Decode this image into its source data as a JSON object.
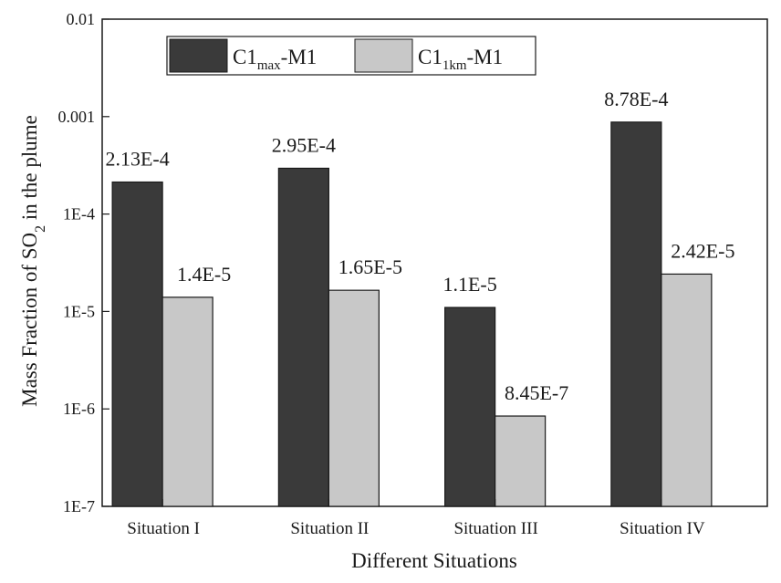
{
  "chart_data": {
    "type": "bar",
    "scale": "log",
    "title": "",
    "xlabel": "Different Situations",
    "ylabel": {
      "prefix": "Mass Fraction of SO",
      "subscript": "2",
      "suffix": " in the plume"
    },
    "categories": [
      "Situation I",
      "Situation II",
      "Situation III",
      "Situation IV"
    ],
    "ylim": [
      1e-07,
      0.01
    ],
    "yticks": [
      {
        "value": 0.01,
        "label": "0.01"
      },
      {
        "value": 0.001,
        "label": "0.001"
      },
      {
        "value": 0.0001,
        "label": "1E-4"
      },
      {
        "value": 1e-05,
        "label": "1E-5"
      },
      {
        "value": 1e-06,
        "label": "1E-6"
      },
      {
        "value": 1e-07,
        "label": "1E-7"
      }
    ],
    "series": [
      {
        "name": "C1max-M1",
        "legend": {
          "base": "C1",
          "sub": "max",
          "suffix": "-M1"
        },
        "color": "#3a3a3a",
        "values": [
          0.000213,
          0.000295,
          1.1e-05,
          0.000878
        ],
        "labels": [
          "2.13E-4",
          "2.95E-4",
          "1.1E-5",
          "8.78E-4"
        ]
      },
      {
        "name": "C11km-M1",
        "legend": {
          "base": "C1",
          "sub": "1km",
          "suffix": "-M1"
        },
        "color": "#c8c8c8",
        "values": [
          1.4e-05,
          1.65e-05,
          8.45e-07,
          2.42e-05
        ],
        "labels": [
          "1.4E-5",
          "1.65E-5",
          "8.45E-7",
          "2.42E-5"
        ]
      }
    ],
    "legend_position": "top-left"
  }
}
